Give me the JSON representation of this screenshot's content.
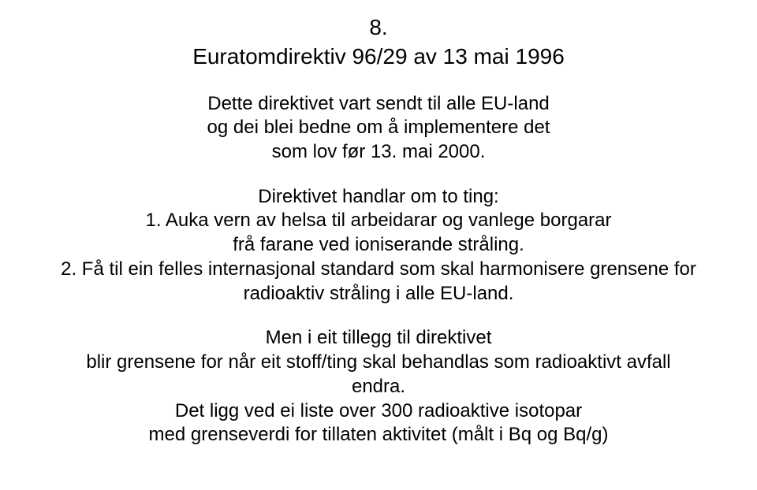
{
  "background_color": "#ffffff",
  "text_color": "#000000",
  "font_family": "Arial, Helvetica, sans-serif",
  "slide_number": "8.",
  "title": "Euratomdirektiv 96/29 av 13 mai 1996",
  "paragraph1_line1": "Dette direktivet vart sendt til alle EU-land",
  "paragraph1_line2": "og dei blei bedne om å implementere det",
  "paragraph1_line3": "som lov før 13. mai 2000.",
  "list_intro": "Direktivet handlar om to ting:",
  "item1_line1": "1. Auka vern av helsa til arbeidarar og vanlege borgarar",
  "item1_line2": "frå farane ved ioniserande stråling.",
  "item2_line1": "2. Få til ein felles internasjonal standard som skal harmonisere grensene for",
  "item2_line2": "radioaktiv stråling i alle EU-land.",
  "closing_line1": "Men i eit tillegg til direktivet",
  "closing_line2": "blir grensene for når eit stoff/ting skal behandlas som radioaktivt avfall",
  "closing_line3": "endra.",
  "closing_line4": "Det ligg ved ei liste over 300 radioaktive isotopar",
  "closing_line5": "med grenseverdi for tillaten aktivitet (målt i Bq og Bq/g)"
}
